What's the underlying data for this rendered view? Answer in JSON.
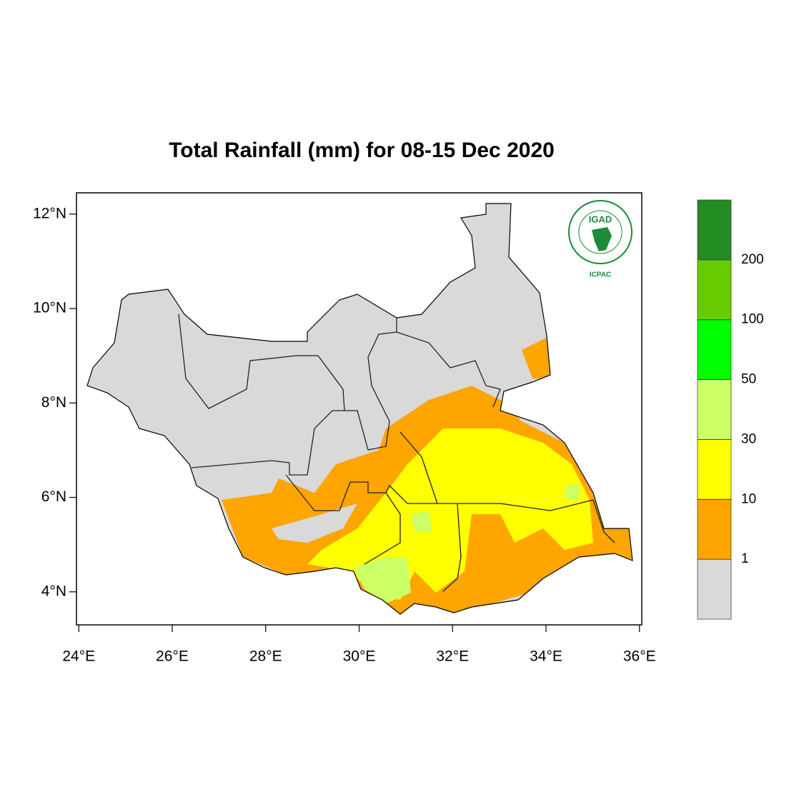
{
  "chart_data": {
    "type": "map",
    "title": "Total Rainfall (mm) for 08-15 Dec 2020",
    "xlim": [
      23.95,
      36.05
    ],
    "ylim": [
      3.3,
      12.45
    ],
    "xticks": [
      {
        "value": 24,
        "label": "24°E"
      },
      {
        "value": 26,
        "label": "26°E"
      },
      {
        "value": 28,
        "label": "28°E"
      },
      {
        "value": 30,
        "label": "30°E"
      },
      {
        "value": 32,
        "label": "32°E"
      },
      {
        "value": 34,
        "label": "34°E"
      },
      {
        "value": 36,
        "label": "36°E"
      }
    ],
    "yticks": [
      {
        "value": 4,
        "label": "4°N"
      },
      {
        "value": 6,
        "label": "6°N"
      },
      {
        "value": 8,
        "label": "8°N"
      },
      {
        "value": 10,
        "label": "10°N"
      },
      {
        "value": 12,
        "label": "12°N"
      }
    ],
    "colorbar": {
      "levels": [
        1,
        10,
        30,
        50,
        100,
        200
      ],
      "colors": [
        "#d9d9d9",
        "#ffa500",
        "#ffff00",
        "#ccff66",
        "#00ff00",
        "#66cc00",
        "#228b22"
      ]
    }
  },
  "logo": {
    "name": "IGAD",
    "org": "ICPAC"
  }
}
